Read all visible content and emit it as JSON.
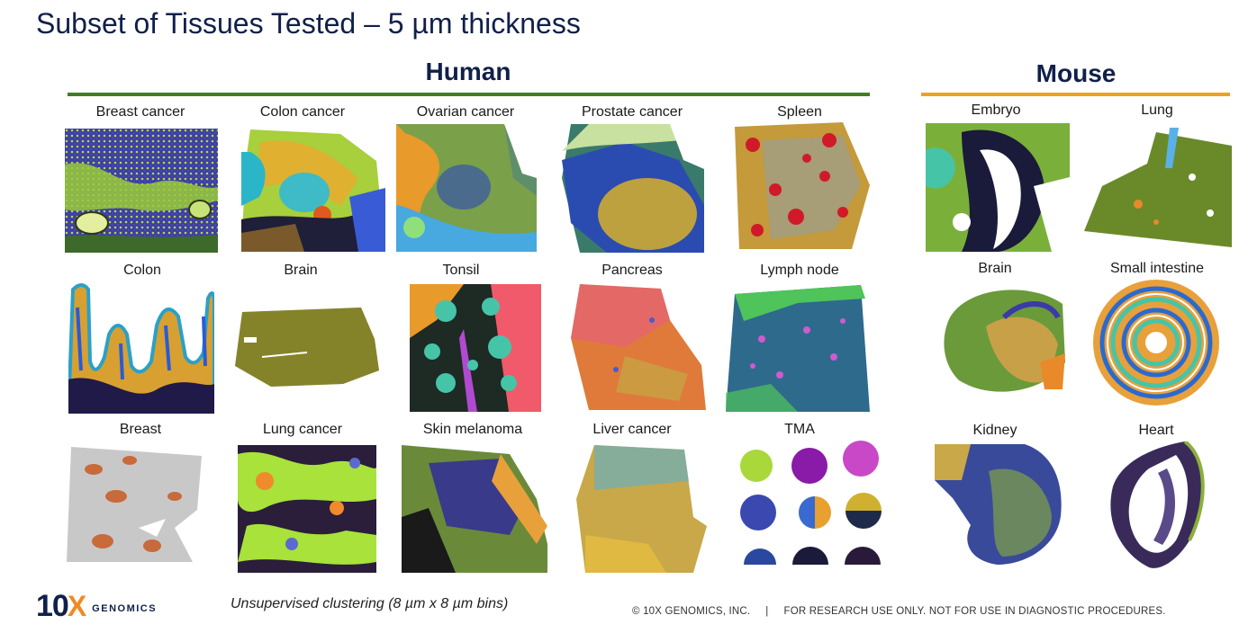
{
  "title": "Subset of Tissues Tested – 5 µm thickness",
  "human": {
    "heading": "Human",
    "rule_color": "#3f7f1f",
    "tiles": [
      {
        "label": "Breast cancer"
      },
      {
        "label": "Colon cancer"
      },
      {
        "label": "Ovarian cancer"
      },
      {
        "label": "Prostate cancer"
      },
      {
        "label": "Spleen"
      },
      {
        "label": "Colon"
      },
      {
        "label": "Brain"
      },
      {
        "label": "Tonsil"
      },
      {
        "label": "Pancreas"
      },
      {
        "label": "Lymph node"
      },
      {
        "label": "Breast"
      },
      {
        "label": "Lung cancer"
      },
      {
        "label": "Skin melanoma"
      },
      {
        "label": "Liver cancer"
      },
      {
        "label": "TMA"
      }
    ]
  },
  "mouse": {
    "heading": "Mouse",
    "rule_color": "#f0a020",
    "tiles": [
      {
        "label": "Embryo"
      },
      {
        "label": "Lung"
      },
      {
        "label": "Brain"
      },
      {
        "label": "Small intestine"
      },
      {
        "label": "Kidney"
      },
      {
        "label": "Heart"
      }
    ]
  },
  "footer": {
    "note": "Unsupervised clustering (8 µm x 8 µm bins)",
    "copyright": "© 10X GENOMICS, INC.     |     FOR RESEARCH USE ONLY. NOT FOR USE IN DIAGNOSTIC PROCEDURES.",
    "logo_number": "10",
    "logo_x": "X",
    "logo_word": "GENOMICS"
  }
}
